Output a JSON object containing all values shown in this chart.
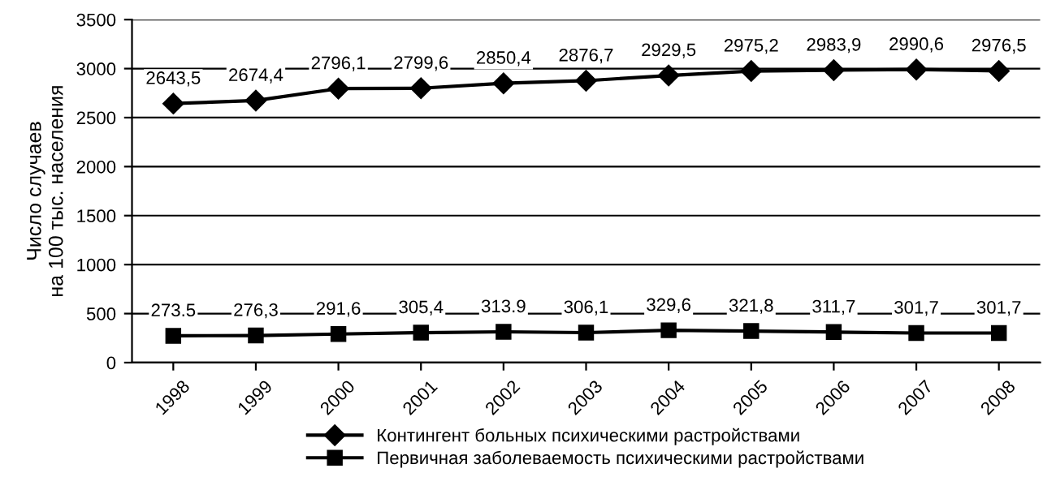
{
  "chart_data": {
    "type": "line",
    "ylabel": "Число случаев\nна 100 тыс. населения",
    "categories": [
      "1998",
      "1999",
      "2000",
      "2001",
      "2002",
      "2003",
      "2004",
      "2005",
      "2006",
      "2007",
      "2008"
    ],
    "series": [
      {
        "name": "Контингент больных психическими растройствами",
        "color": "#000000",
        "marker": "diamond",
        "values": [
          2643.5,
          2674.4,
          2796.1,
          2799.6,
          2850.4,
          2876.7,
          2929.5,
          2975.2,
          2983.9,
          2990.6,
          2976.5
        ],
        "value_labels": [
          "2643,5",
          "2674,4",
          "2796,1",
          "2799,6",
          "2850,4",
          "2876,7",
          "2929,5",
          "2975,2",
          "2983,9",
          "2990,6",
          "2976,5"
        ]
      },
      {
        "name": "Первичная заболеваемость психическими растройствами",
        "color": "#000000",
        "marker": "square",
        "values": [
          273.5,
          276.3,
          291.6,
          305.4,
          313.9,
          306.1,
          329.6,
          321.8,
          311.7,
          301.7,
          301.7
        ],
        "value_labels": [
          "273.5",
          "276,3",
          "291,6",
          "305,4",
          "313.9",
          "306,1",
          "329,6",
          "321,8",
          "311,7",
          "301,7",
          "301,7"
        ]
      }
    ],
    "ylim": [
      0,
      3500
    ],
    "yticks": [
      0,
      500,
      1000,
      1500,
      2000,
      2500,
      3000,
      3500
    ],
    "grid": "y",
    "legend": "bottom",
    "line_style": "solid"
  }
}
